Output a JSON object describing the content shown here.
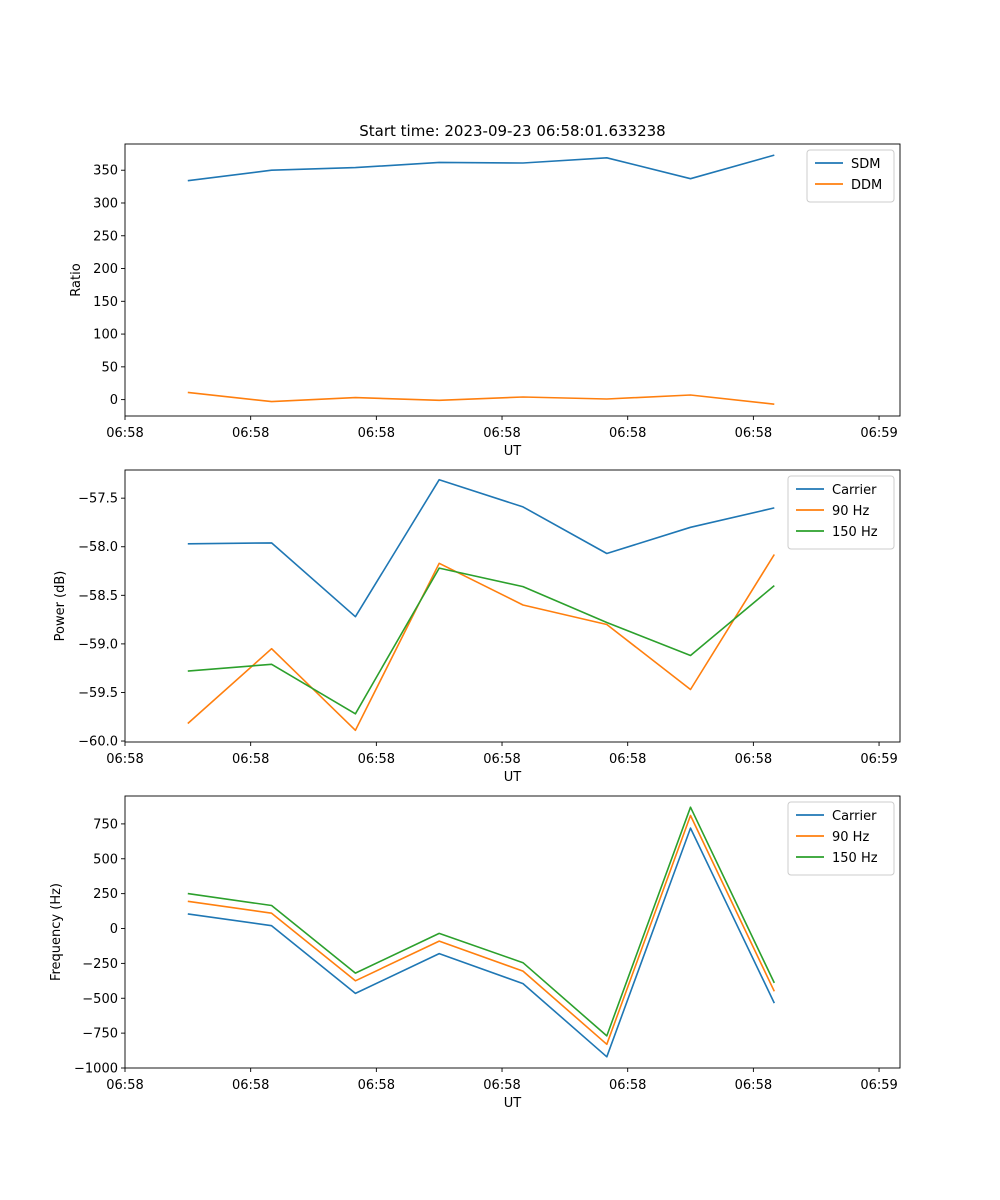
{
  "figure_title": "Start time: 2023-09-23 06:58:01.633238",
  "colors": {
    "blue": "#1f77b4",
    "orange": "#ff7f0e",
    "green": "#2ca02c"
  },
  "chart_data": [
    {
      "type": "line",
      "title": "Start time: 2023-09-23 06:58:01.633238",
      "xlabel": "UT",
      "ylabel": "Ratio",
      "x": [
        0,
        1,
        2,
        3,
        4,
        5,
        6,
        7
      ],
      "xlim": [
        -0.75,
        8.5
      ],
      "xticks": [
        -0.75,
        0.75,
        2.25,
        3.75,
        5.25,
        6.75,
        8.25
      ],
      "xtick_labels": [
        "06:58",
        "06:58",
        "06:58",
        "06:58",
        "06:58",
        "06:58",
        "06:59"
      ],
      "ylim": [
        -25,
        390
      ],
      "yticks": [
        0,
        50,
        100,
        150,
        200,
        250,
        300,
        350
      ],
      "ytick_labels": [
        "0",
        "50",
        "100",
        "150",
        "200",
        "250",
        "300",
        "350"
      ],
      "legend_position": "top-right",
      "series": [
        {
          "name": "SDM",
          "color": "#1f77b4",
          "values": [
            334,
            350,
            354,
            362,
            361,
            369,
            337,
            373
          ]
        },
        {
          "name": "DDM",
          "color": "#ff7f0e",
          "values": [
            11,
            -3,
            3,
            -1,
            4,
            1,
            7,
            -7
          ]
        }
      ]
    },
    {
      "type": "line",
      "title": "",
      "xlabel": "UT",
      "ylabel": "Power (dB)",
      "x": [
        0,
        1,
        2,
        3,
        4,
        5,
        6,
        7
      ],
      "xlim": [
        -0.75,
        8.5
      ],
      "xticks": [
        -0.75,
        0.75,
        2.25,
        3.75,
        5.25,
        6.75,
        8.25
      ],
      "xtick_labels": [
        "06:58",
        "06:58",
        "06:58",
        "06:58",
        "06:58",
        "06:58",
        "06:59"
      ],
      "ylim": [
        -60.01,
        -57.21
      ],
      "yticks": [
        -60.0,
        -59.5,
        -59.0,
        -58.5,
        -58.0,
        -57.5
      ],
      "ytick_labels": [
        "−60.0",
        "−59.5",
        "−59.0",
        "−58.5",
        "−58.0",
        "−57.5"
      ],
      "legend_position": "top-right",
      "series": [
        {
          "name": "Carrier",
          "color": "#1f77b4",
          "values": [
            -57.97,
            -57.96,
            -58.72,
            -57.31,
            -57.59,
            -58.07,
            -57.8,
            -57.6
          ]
        },
        {
          "name": "90 Hz",
          "color": "#ff7f0e",
          "values": [
            -59.82,
            -59.05,
            -59.89,
            -58.17,
            -58.6,
            -58.8,
            -59.47,
            -58.08
          ]
        },
        {
          "name": "150 Hz",
          "color": "#2ca02c",
          "values": [
            -59.28,
            -59.21,
            -59.72,
            -58.22,
            -58.41,
            -58.78,
            -59.12,
            -58.4
          ]
        }
      ]
    },
    {
      "type": "line",
      "title": "",
      "xlabel": "UT",
      "ylabel": "Frequency (Hz)",
      "x": [
        0,
        1,
        2,
        3,
        4,
        5,
        6,
        7
      ],
      "xlim": [
        -0.75,
        8.5
      ],
      "xticks": [
        -0.75,
        0.75,
        2.25,
        3.75,
        5.25,
        6.75,
        8.25
      ],
      "xtick_labels": [
        "06:58",
        "06:58",
        "06:58",
        "06:58",
        "06:58",
        "06:58",
        "06:59"
      ],
      "ylim": [
        -1000,
        950
      ],
      "yticks": [
        -1000,
        -750,
        -500,
        -250,
        0,
        250,
        500,
        750
      ],
      "ytick_labels": [
        "−1000",
        "−750",
        "−500",
        "−250",
        "0",
        "250",
        "500",
        "750"
      ],
      "legend_position": "top-right",
      "series": [
        {
          "name": "Carrier",
          "color": "#1f77b4",
          "values": [
            105,
            20,
            -465,
            -180,
            -395,
            -920,
            720,
            -535
          ]
        },
        {
          "name": "90 Hz",
          "color": "#ff7f0e",
          "values": [
            195,
            110,
            -375,
            -90,
            -305,
            -830,
            810,
            -450
          ]
        },
        {
          "name": "150 Hz",
          "color": "#2ca02c",
          "values": [
            250,
            165,
            -320,
            -35,
            -245,
            -770,
            870,
            -390
          ]
        }
      ]
    }
  ]
}
